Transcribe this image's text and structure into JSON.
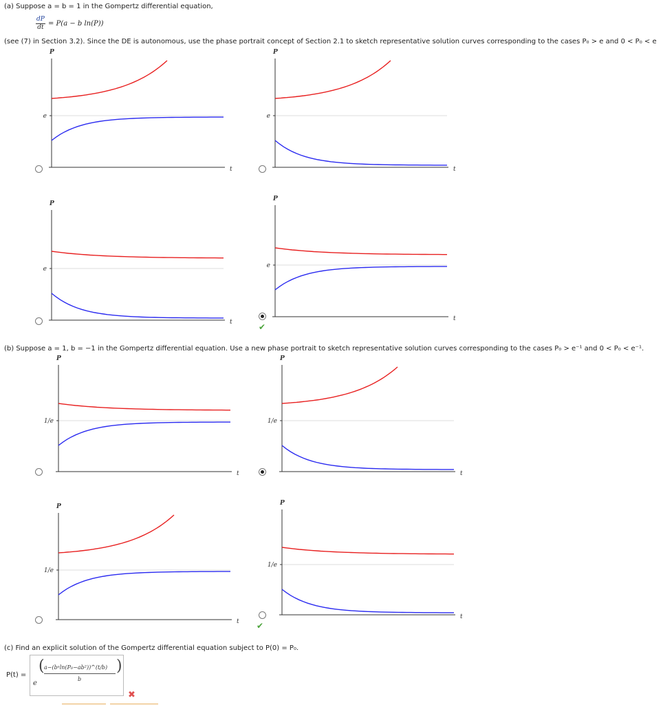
{
  "part_a": {
    "intro": "(a) Suppose  a = b = 1  in the Gompertz differential equation,",
    "eq_num": "dP",
    "eq_den": "dt",
    "eq_rhs": "= P(a − b ln(P))",
    "instruction": "(see (7) in Section 3.2). Since the DE is autonomous, use the phase portrait concept of Section 2.1 to sketch representative solution curves corresponding to the cases  P₀ > e and 0 < P₀ < e"
  },
  "part_b": {
    "instruction": "(b) Suppose  a = 1, b = −1  in the Gompertz differential equation. Use a new phase portrait to sketch representative solution curves corresponding to the cases  P₀ > e⁻¹  and  0 < P₀ < e⁻¹."
  },
  "part_c": {
    "instruction": "(c) Find an explicit solution of the Gompertz differential equation subject to  P(0) = P₀.",
    "answer_label": "P(t) =",
    "answer_base": "e",
    "answer_num": "a−(bᵃln(P₀−ab²))^(t/b)",
    "answer_den": "b"
  },
  "axis_labels": {
    "p": "P",
    "t": "t",
    "e": "e",
    "inv_e": "1/e"
  },
  "colors": {
    "upper_curve": "#e82020",
    "lower_curve": "#2a2af0",
    "axis": "#333333",
    "equilibrium": "#dddddd",
    "correct": "#4aa33a",
    "wrong": "#e05050"
  },
  "options": [
    {
      "id": "a1",
      "part": "a",
      "selected": false,
      "upper": "growth",
      "lower": "increase_to_eq",
      "eq_label": "e",
      "mark": ""
    },
    {
      "id": "a2",
      "part": "a",
      "selected": false,
      "upper": "growth",
      "lower": "decrease_to_zero",
      "eq_label": "e",
      "mark": ""
    },
    {
      "id": "a3",
      "part": "a",
      "selected": false,
      "upper": "decrease_to_eq",
      "lower": "decrease_to_zero",
      "eq_label": "e",
      "mark": ""
    },
    {
      "id": "a4",
      "part": "a",
      "selected": true,
      "upper": "decrease_to_eq",
      "lower": "increase_to_eq",
      "eq_label": "e",
      "mark": "correct"
    },
    {
      "id": "b1",
      "part": "b",
      "selected": false,
      "upper": "decrease_to_eq",
      "lower": "increase_to_eq",
      "eq_label": "1/e",
      "mark": ""
    },
    {
      "id": "b2",
      "part": "b",
      "selected": true,
      "upper": "growth",
      "lower": "decrease_to_zero",
      "eq_label": "1/e",
      "mark": ""
    },
    {
      "id": "b3",
      "part": "b",
      "selected": false,
      "upper": "growth",
      "lower": "increase_to_eq",
      "eq_label": "1/e",
      "mark": ""
    },
    {
      "id": "b4",
      "part": "b",
      "selected": false,
      "upper": "decrease_to_eq",
      "lower": "decrease_to_zero",
      "eq_label": "1/e",
      "mark": "correct"
    }
  ]
}
